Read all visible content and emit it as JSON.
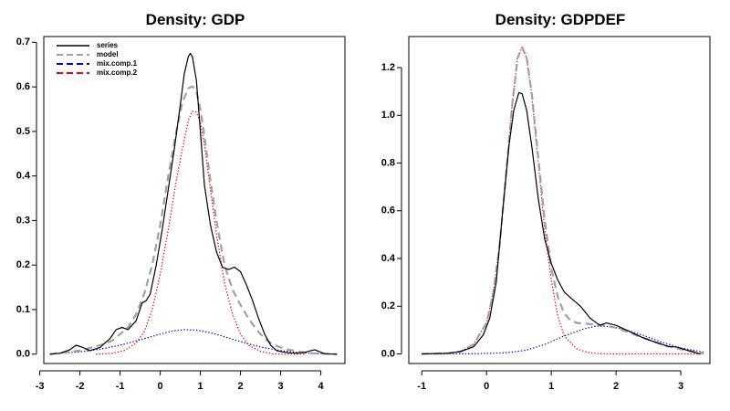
{
  "chart_data": [
    {
      "type": "line",
      "title": "Density: GDP",
      "xlabel": "",
      "ylabel": "",
      "xlim": [
        -2.9,
        4.6
      ],
      "ylim": [
        -0.021,
        0.713
      ],
      "xticks": [
        -3,
        -2,
        -1,
        0,
        1,
        2,
        3,
        4
      ],
      "yticks": [
        0.0,
        0.1,
        0.2,
        0.3,
        0.4,
        0.5,
        0.6,
        0.7
      ],
      "xtick_labels": [
        "-3",
        "-2",
        "-1",
        "0",
        "1",
        "2",
        "3",
        "4"
      ],
      "ytick_labels": [
        "0.0",
        "0.1",
        "0.2",
        "0.3",
        "0.4",
        "0.5",
        "0.6",
        "0.7"
      ],
      "legend": {
        "position": "top-left",
        "entries": [
          {
            "label": "series",
            "color": "#000000",
            "style": "solid"
          },
          {
            "label": "model",
            "color": "#a0a0a0",
            "style": "dashed"
          },
          {
            "label": "mix.comp.1",
            "color": "#0000ee",
            "style": "dashed"
          },
          {
            "label": "mix.comp.2",
            "color": "#ee0000",
            "style": "dashed"
          }
        ]
      },
      "series": [
        {
          "name": "series",
          "color": "#000000",
          "style": "solid",
          "x": [
            -2.75,
            -2.5,
            -2.25,
            -2.1,
            -1.95,
            -1.75,
            -1.5,
            -1.25,
            -1.1,
            -0.95,
            -0.8,
            -0.6,
            -0.45,
            -0.35,
            -0.25,
            -0.1,
            0.05,
            0.2,
            0.35,
            0.5,
            0.6,
            0.7,
            0.75,
            0.8,
            0.9,
            1.0,
            1.1,
            1.25,
            1.4,
            1.55,
            1.7,
            1.85,
            2.0,
            2.15,
            2.3,
            2.45,
            2.6,
            2.75,
            2.9,
            3.05,
            3.2,
            3.4,
            3.6,
            3.75,
            3.85,
            3.95,
            4.1,
            4.4
          ],
          "y": [
            0.0,
            0.002,
            0.01,
            0.02,
            0.016,
            0.008,
            0.015,
            0.035,
            0.055,
            0.06,
            0.055,
            0.075,
            0.115,
            0.12,
            0.135,
            0.2,
            0.28,
            0.37,
            0.46,
            0.56,
            0.63,
            0.668,
            0.675,
            0.668,
            0.615,
            0.5,
            0.38,
            0.29,
            0.23,
            0.195,
            0.19,
            0.195,
            0.185,
            0.155,
            0.12,
            0.08,
            0.045,
            0.02,
            0.008,
            0.005,
            0.003,
            0.002,
            0.004,
            0.008,
            0.01,
            0.006,
            0.001,
            0.0
          ]
        },
        {
          "name": "model",
          "color": "#a0a0a0",
          "style": "dashed",
          "x": [
            -2.75,
            -2.5,
            -2.0,
            -1.5,
            -1.2,
            -1.0,
            -0.8,
            -0.6,
            -0.4,
            -0.2,
            0.0,
            0.2,
            0.4,
            0.55,
            0.7,
            0.8,
            0.9,
            1.0,
            1.1,
            1.25,
            1.4,
            1.6,
            1.8,
            2.0,
            2.2,
            2.4,
            2.6,
            2.8,
            3.0,
            3.2,
            3.5,
            3.8,
            4.1,
            4.4
          ],
          "y": [
            0.0,
            0.003,
            0.008,
            0.02,
            0.03,
            0.045,
            0.06,
            0.09,
            0.135,
            0.2,
            0.29,
            0.4,
            0.5,
            0.565,
            0.597,
            0.601,
            0.59,
            0.55,
            0.49,
            0.39,
            0.3,
            0.2,
            0.145,
            0.11,
            0.08,
            0.055,
            0.035,
            0.022,
            0.015,
            0.01,
            0.005,
            0.002,
            0.001,
            0.0
          ]
        },
        {
          "name": "mix.comp.1",
          "color": "#0000ee",
          "style": "dotted",
          "x": [
            -2.75,
            -2.5,
            -2.0,
            -1.5,
            -1.0,
            -0.5,
            0.0,
            0.3,
            0.6,
            0.9,
            1.2,
            1.5,
            2.0,
            2.5,
            3.0,
            3.5,
            4.0,
            4.4
          ],
          "y": [
            0.001,
            0.002,
            0.005,
            0.011,
            0.02,
            0.032,
            0.045,
            0.052,
            0.055,
            0.054,
            0.049,
            0.042,
            0.028,
            0.016,
            0.008,
            0.003,
            0.001,
            0.0
          ]
        },
        {
          "name": "mix.comp.2",
          "color": "#ee0000",
          "style": "dotted",
          "x": [
            -1.6,
            -1.2,
            -0.9,
            -0.6,
            -0.4,
            -0.2,
            0.0,
            0.2,
            0.4,
            0.55,
            0.7,
            0.8,
            0.9,
            1.0,
            1.1,
            1.25,
            1.4,
            1.6,
            1.8,
            2.0,
            2.2,
            2.5,
            2.8,
            3.0,
            3.3,
            3.6
          ],
          "y": [
            0.0,
            0.002,
            0.008,
            0.025,
            0.05,
            0.1,
            0.18,
            0.28,
            0.39,
            0.46,
            0.525,
            0.545,
            0.543,
            0.52,
            0.47,
            0.37,
            0.27,
            0.16,
            0.09,
            0.045,
            0.02,
            0.006,
            0.001,
            0.0,
            0.0,
            0.0
          ]
        }
      ]
    },
    {
      "type": "line",
      "title": "Density: GDPDEF",
      "xlabel": "",
      "ylabel": "",
      "xlim": [
        -1.2,
        3.45
      ],
      "ylim": [
        -0.04,
        1.33
      ],
      "xticks": [
        -1,
        0,
        1,
        2,
        3
      ],
      "yticks": [
        0.0,
        0.2,
        0.4,
        0.6,
        0.8,
        1.0,
        1.2
      ],
      "xtick_labels": [
        "-1",
        "0",
        "1",
        "2",
        "3"
      ],
      "ytick_labels": [
        "0.0",
        "0.2",
        "0.4",
        "0.6",
        "0.8",
        "1.0",
        "1.2"
      ],
      "series": [
        {
          "name": "series",
          "color": "#000000",
          "style": "solid",
          "x": [
            -1.0,
            -0.6,
            -0.4,
            -0.2,
            -0.05,
            0.05,
            0.15,
            0.25,
            0.35,
            0.42,
            0.5,
            0.55,
            0.62,
            0.7,
            0.8,
            0.9,
            1.0,
            1.1,
            1.2,
            1.3,
            1.45,
            1.6,
            1.75,
            1.85,
            2.0,
            2.2,
            2.4,
            2.6,
            2.8,
            2.95,
            3.1,
            3.3
          ],
          "y": [
            0.0,
            0.003,
            0.01,
            0.03,
            0.08,
            0.15,
            0.3,
            0.6,
            0.88,
            1.02,
            1.095,
            1.09,
            1.02,
            0.87,
            0.65,
            0.48,
            0.38,
            0.31,
            0.26,
            0.235,
            0.2,
            0.15,
            0.12,
            0.13,
            0.12,
            0.095,
            0.07,
            0.05,
            0.032,
            0.028,
            0.015,
            0.0
          ]
        },
        {
          "name": "model",
          "color": "#a0a0a0",
          "style": "dashed",
          "x": [
            -1.0,
            -0.6,
            -0.4,
            -0.2,
            0.0,
            0.1,
            0.2,
            0.3,
            0.4,
            0.48,
            0.55,
            0.62,
            0.7,
            0.8,
            0.9,
            1.0,
            1.1,
            1.2,
            1.3,
            1.4,
            1.6,
            1.8,
            2.0,
            2.2,
            2.4,
            2.6,
            2.8,
            3.0,
            3.2,
            3.35
          ],
          "y": [
            0.0,
            0.003,
            0.01,
            0.04,
            0.13,
            0.25,
            0.45,
            0.75,
            1.05,
            1.24,
            1.285,
            1.24,
            1.09,
            0.82,
            0.56,
            0.36,
            0.24,
            0.17,
            0.14,
            0.13,
            0.125,
            0.12,
            0.11,
            0.09,
            0.07,
            0.05,
            0.032,
            0.02,
            0.009,
            0.003
          ]
        },
        {
          "name": "mix.comp.1",
          "color": "#0000ee",
          "style": "dotted",
          "x": [
            -1.0,
            -0.5,
            0.0,
            0.3,
            0.6,
            0.9,
            1.2,
            1.5,
            1.7,
            1.9,
            2.1,
            2.4,
            2.7,
            3.0,
            3.35
          ],
          "y": [
            0.0,
            0.0,
            0.002,
            0.005,
            0.015,
            0.04,
            0.075,
            0.105,
            0.117,
            0.115,
            0.105,
            0.08,
            0.05,
            0.025,
            0.008
          ]
        },
        {
          "name": "mix.comp.2",
          "color": "#ee0000",
          "style": "dotted",
          "x": [
            -1.0,
            -0.6,
            -0.4,
            -0.2,
            0.0,
            0.1,
            0.2,
            0.3,
            0.4,
            0.48,
            0.55,
            0.62,
            0.7,
            0.8,
            0.9,
            1.0,
            1.1,
            1.2,
            1.4,
            1.6,
            1.8,
            2.0,
            2.5,
            3.0,
            3.35
          ],
          "y": [
            0.0,
            0.003,
            0.01,
            0.04,
            0.13,
            0.25,
            0.45,
            0.75,
            1.05,
            1.24,
            1.285,
            1.24,
            1.08,
            0.8,
            0.52,
            0.31,
            0.16,
            0.075,
            0.02,
            0.004,
            0.001,
            0.0,
            0.0,
            0.0,
            0.0
          ]
        }
      ]
    }
  ]
}
